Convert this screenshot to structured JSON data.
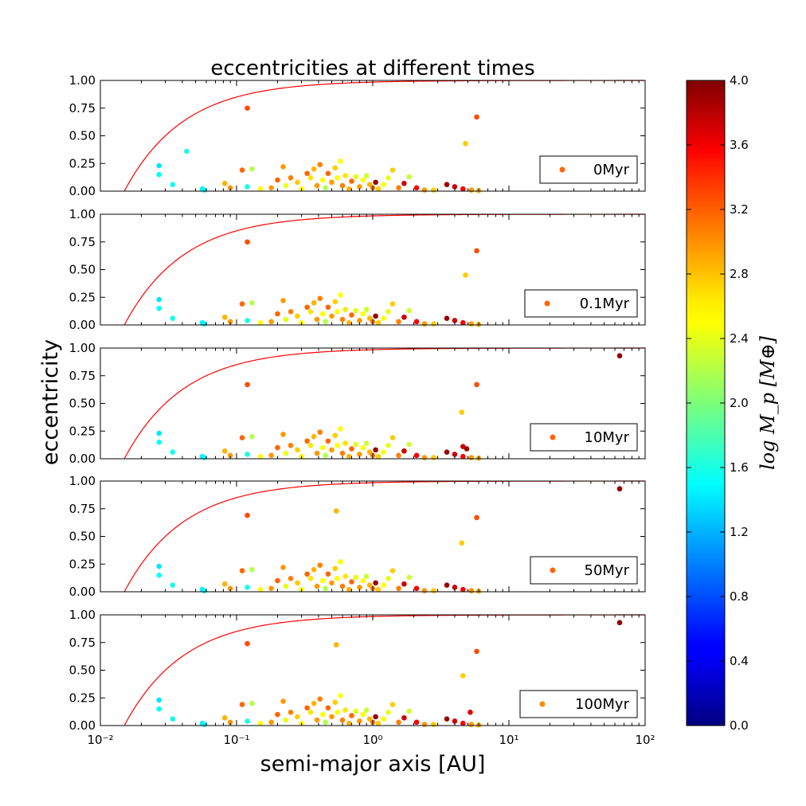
{
  "chart_data": {
    "type": "scatter",
    "title": "eccentricities at different times",
    "xlabel": "semi-major axis [AU]",
    "ylabel": "eccentricity",
    "xscale": "log",
    "xlim": [
      0.01,
      100
    ],
    "ylim": [
      0,
      1
    ],
    "x_tick_labels": [
      "10⁻²",
      "10⁻¹",
      "10⁰",
      "10¹",
      "10²"
    ],
    "y_tick_labels": [
      "0.00",
      "0.25",
      "0.50",
      "0.75",
      "1.00"
    ],
    "legend_placement": "right",
    "colorbar": {
      "label": "log M_p [M⊕]",
      "range": [
        0.0,
        4.0
      ],
      "tick_labels": [
        "0.0",
        "0.4",
        "0.8",
        "1.2",
        "1.6",
        "2.0",
        "2.4",
        "2.8",
        "3.2",
        "3.6",
        "4.0"
      ],
      "colormap": "jet"
    },
    "curve": {
      "color": "#ff0000",
      "description_in_legend": false
    },
    "base_points": [
      {
        "a": 0.027,
        "e": 0.23,
        "logm": 1.4
      },
      {
        "a": 0.027,
        "e": 0.15,
        "logm": 1.5
      },
      {
        "a": 0.034,
        "e": 0.06,
        "logm": 1.55
      },
      {
        "a": 0.056,
        "e": 0.02,
        "logm": 1.45
      },
      {
        "a": 0.058,
        "e": 0.01,
        "logm": 1.5
      },
      {
        "a": 0.082,
        "e": 0.07,
        "logm": 2.8
      },
      {
        "a": 0.09,
        "e": 0.03,
        "logm": 2.9
      },
      {
        "a": 0.11,
        "e": 0.19,
        "logm": 3.1
      },
      {
        "a": 0.12,
        "e": 0.04,
        "logm": 1.6
      },
      {
        "a": 0.13,
        "e": 0.2,
        "logm": 2.2
      },
      {
        "a": 0.15,
        "e": 0.02,
        "logm": 2.5
      },
      {
        "a": 0.18,
        "e": 0.03,
        "logm": 2.9
      },
      {
        "a": 0.2,
        "e": 0.1,
        "logm": 3.1
      },
      {
        "a": 0.22,
        "e": 0.22,
        "logm": 2.9
      },
      {
        "a": 0.23,
        "e": 0.05,
        "logm": 2.4
      },
      {
        "a": 0.25,
        "e": 0.12,
        "logm": 3.0
      },
      {
        "a": 0.28,
        "e": 0.08,
        "logm": 2.7
      },
      {
        "a": 0.3,
        "e": 0.02,
        "logm": 2.5
      },
      {
        "a": 0.33,
        "e": 0.16,
        "logm": 3.1
      },
      {
        "a": 0.35,
        "e": 0.12,
        "logm": 2.6
      },
      {
        "a": 0.37,
        "e": 0.2,
        "logm": 2.8
      },
      {
        "a": 0.39,
        "e": 0.05,
        "logm": 2.9
      },
      {
        "a": 0.41,
        "e": 0.24,
        "logm": 3.0
      },
      {
        "a": 0.43,
        "e": 0.1,
        "logm": 2.5
      },
      {
        "a": 0.45,
        "e": 0.03,
        "logm": 2.2
      },
      {
        "a": 0.47,
        "e": 0.16,
        "logm": 3.1
      },
      {
        "a": 0.5,
        "e": 0.08,
        "logm": 2.9
      },
      {
        "a": 0.53,
        "e": 0.21,
        "logm": 2.7
      },
      {
        "a": 0.55,
        "e": 0.12,
        "logm": 2.5
      },
      {
        "a": 0.58,
        "e": 0.27,
        "logm": 2.5
      },
      {
        "a": 0.6,
        "e": 0.05,
        "logm": 3.0
      },
      {
        "a": 0.63,
        "e": 0.14,
        "logm": 2.6
      },
      {
        "a": 0.67,
        "e": 0.02,
        "logm": 2.8
      },
      {
        "a": 0.7,
        "e": 0.09,
        "logm": 3.1
      },
      {
        "a": 0.75,
        "e": 0.13,
        "logm": 2.4
      },
      {
        "a": 0.8,
        "e": 0.04,
        "logm": 2.9
      },
      {
        "a": 0.85,
        "e": 0.1,
        "logm": 2.5
      },
      {
        "a": 0.9,
        "e": 0.14,
        "logm": 2.3
      },
      {
        "a": 0.95,
        "e": 0.06,
        "logm": 2.8
      },
      {
        "a": 1.0,
        "e": 0.03,
        "logm": 3.0
      },
      {
        "a": 1.05,
        "e": 0.08,
        "logm": 3.9
      },
      {
        "a": 1.1,
        "e": 0.02,
        "logm": 2.7
      },
      {
        "a": 1.2,
        "e": 0.06,
        "logm": 2.5
      },
      {
        "a": 1.3,
        "e": 0.12,
        "logm": 2.4
      },
      {
        "a": 1.4,
        "e": 0.19,
        "logm": 2.7
      },
      {
        "a": 1.55,
        "e": 0.03,
        "logm": 3.0
      },
      {
        "a": 1.7,
        "e": 0.07,
        "logm": 3.7
      },
      {
        "a": 1.85,
        "e": 0.13,
        "logm": 2.3
      },
      {
        "a": 2.1,
        "e": 0.03,
        "logm": 3.5
      },
      {
        "a": 2.4,
        "e": 0.01,
        "logm": 2.9
      },
      {
        "a": 2.8,
        "e": 0.01,
        "logm": 2.7
      },
      {
        "a": 3.5,
        "e": 0.06,
        "logm": 3.9
      },
      {
        "a": 4.0,
        "e": 0.04,
        "logm": 3.7
      },
      {
        "a": 4.6,
        "e": 0.02,
        "logm": 3.5
      },
      {
        "a": 5.3,
        "e": 0.01,
        "logm": 2.9
      },
      {
        "a": 6.0,
        "e": 0.005,
        "logm": 2.8
      }
    ],
    "series": [
      {
        "name": "0Myr",
        "legend_color": "#ff6600",
        "extra_points": [
          {
            "a": 0.12,
            "e": 0.75,
            "logm": 3.2
          },
          {
            "a": 0.043,
            "e": 0.36,
            "logm": 1.6
          },
          {
            "a": 4.8,
            "e": 0.43,
            "logm": 2.7
          },
          {
            "a": 5.8,
            "e": 0.67,
            "logm": 3.2
          }
        ]
      },
      {
        "name": "0.1Myr",
        "legend_color": "#ff6600",
        "extra_points": [
          {
            "a": 0.12,
            "e": 0.75,
            "logm": 3.2
          },
          {
            "a": 4.8,
            "e": 0.45,
            "logm": 2.7
          },
          {
            "a": 5.8,
            "e": 0.67,
            "logm": 3.2
          }
        ]
      },
      {
        "name": "10Myr",
        "legend_color": "#ff6600",
        "extra_points": [
          {
            "a": 0.12,
            "e": 0.67,
            "logm": 3.2
          },
          {
            "a": 4.5,
            "e": 0.42,
            "logm": 2.7
          },
          {
            "a": 5.8,
            "e": 0.67,
            "logm": 3.2
          },
          {
            "a": 65,
            "e": 0.93,
            "logm": 3.95
          },
          {
            "a": 4.6,
            "e": 0.11,
            "logm": 3.7
          },
          {
            "a": 4.9,
            "e": 0.09,
            "logm": 3.9
          }
        ]
      },
      {
        "name": "50Myr",
        "legend_color": "#ff6600",
        "extra_points": [
          {
            "a": 0.12,
            "e": 0.69,
            "logm": 3.2
          },
          {
            "a": 0.54,
            "e": 0.73,
            "logm": 2.8
          },
          {
            "a": 4.5,
            "e": 0.44,
            "logm": 2.7
          },
          {
            "a": 5.8,
            "e": 0.67,
            "logm": 3.2
          },
          {
            "a": 65,
            "e": 0.93,
            "logm": 3.95
          }
        ]
      },
      {
        "name": "100Myr",
        "legend_color": "#ff8800",
        "extra_points": [
          {
            "a": 0.12,
            "e": 0.74,
            "logm": 3.2
          },
          {
            "a": 0.54,
            "e": 0.73,
            "logm": 2.8
          },
          {
            "a": 4.6,
            "e": 0.45,
            "logm": 2.7
          },
          {
            "a": 5.8,
            "e": 0.67,
            "logm": 3.2
          },
          {
            "a": 65,
            "e": 0.93,
            "logm": 3.95
          },
          {
            "a": 5.2,
            "e": 0.12,
            "logm": 3.6
          }
        ]
      }
    ]
  }
}
